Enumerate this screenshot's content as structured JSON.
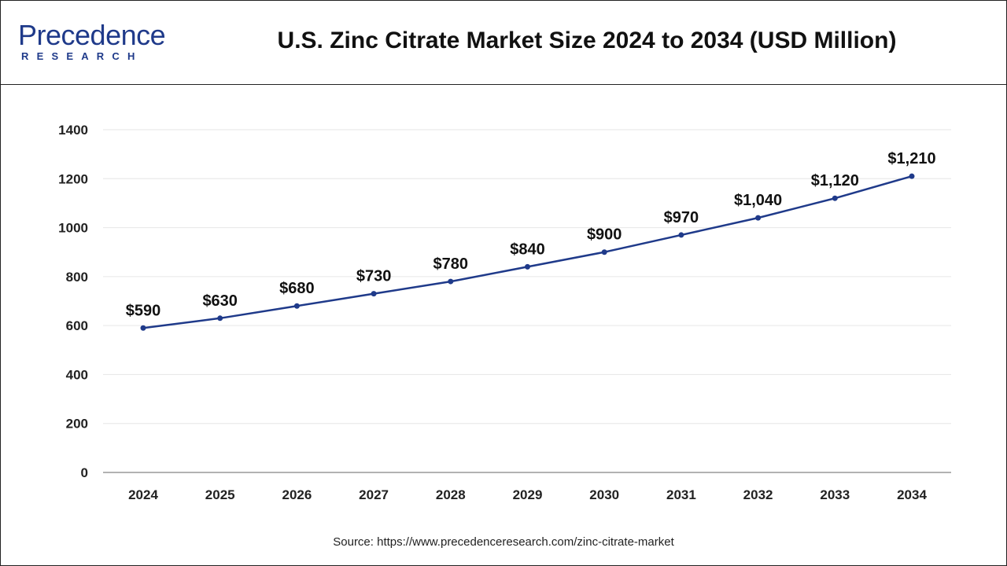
{
  "header": {
    "logo_top": "recedence",
    "logo_p": "P",
    "logo_bottom": "RESEARCH",
    "title": "U.S. Zinc Citrate Market Size 2024 to 2034 (USD Million)"
  },
  "footer": {
    "source": "Source: https://www.precedenceresearch.com/zinc-citrate-market"
  },
  "colors": {
    "line": "#1f3a8a",
    "grid": "#e6e6e6",
    "axis": "#999999"
  },
  "chart_data": {
    "type": "line",
    "title": "U.S. Zinc Citrate Market Size 2024 to 2034 (USD Million)",
    "xlabel": "",
    "ylabel": "",
    "ylim": [
      0,
      1400
    ],
    "yticks": [
      0,
      200,
      400,
      600,
      800,
      1000,
      1200,
      1400
    ],
    "grid": true,
    "legend": "none",
    "categories": [
      "2024",
      "2025",
      "2026",
      "2027",
      "2028",
      "2029",
      "2030",
      "2031",
      "2032",
      "2033",
      "2034"
    ],
    "values": [
      590,
      630,
      680,
      730,
      780,
      840,
      900,
      970,
      1040,
      1120,
      1210
    ],
    "data_labels": [
      "$590",
      "$630",
      "$680",
      "$730",
      "$780",
      "$840",
      "$900",
      "$970",
      "$1,040",
      "$1,120",
      "$1,210"
    ]
  }
}
